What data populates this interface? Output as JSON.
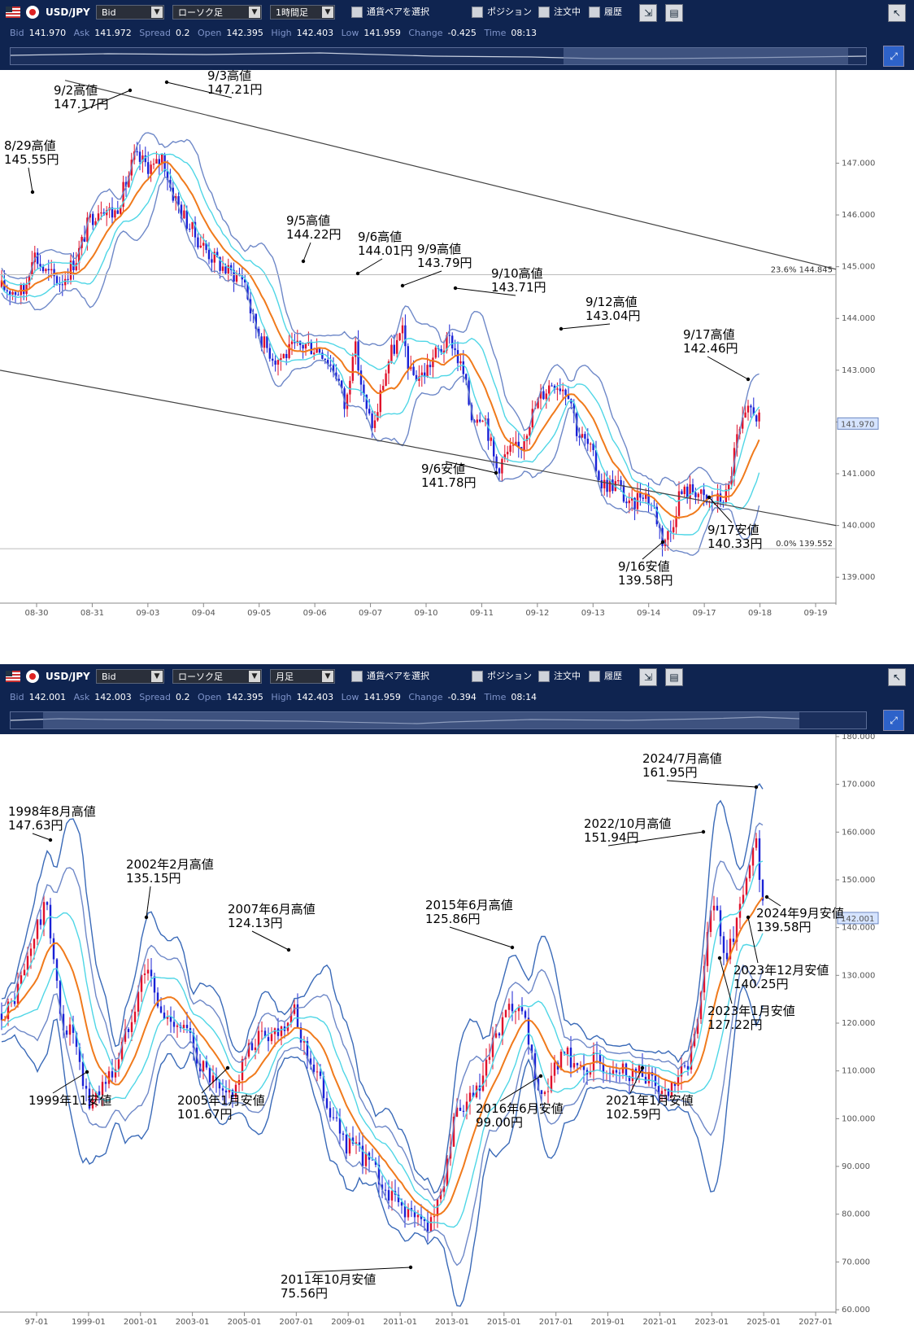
{
  "top": {
    "toolbar": {
      "pair": "USD/JPY",
      "price_type": "Bid",
      "chart_type": "ローソク足",
      "interval": "1時間足",
      "pair_select": "通貨ペアを選択",
      "position": "ポジション",
      "orders": "注文中",
      "history": "履歴"
    },
    "quote": {
      "bid_label": "Bid",
      "bid": "141.970",
      "ask_label": "Ask",
      "ask": "141.972",
      "spread_label": "Spread",
      "spread": "0.2",
      "open_label": "Open",
      "open": "142.395",
      "high_label": "High",
      "high": "142.403",
      "low_label": "Low",
      "low": "141.959",
      "change_label": "Change",
      "change": "-0.425",
      "time_label": "Time",
      "time": "08:13"
    },
    "price_tag": "141.970",
    "fib": [
      {
        "text": "23.6%  144.845",
        "value": 144.845
      },
      {
        "text": "0.0%  139.552",
        "value": 139.552
      }
    ]
  },
  "bottom": {
    "toolbar": {
      "pair": "USD/JPY",
      "price_type": "Bid",
      "chart_type": "ローソク足",
      "interval": "月足",
      "pair_select": "通貨ペアを選択",
      "position": "ポジション",
      "orders": "注文中",
      "history": "履歴"
    },
    "quote": {
      "bid_label": "Bid",
      "bid": "142.001",
      "ask_label": "Ask",
      "ask": "142.003",
      "spread_label": "Spread",
      "spread": "0.2",
      "open_label": "Open",
      "open": "142.395",
      "high_label": "High",
      "high": "142.403",
      "low_label": "Low",
      "low": "141.959",
      "change_label": "Change",
      "change": "-0.394",
      "time_label": "Time",
      "time": "08:14"
    },
    "price_tag": "142.001"
  },
  "chart_data": [
    {
      "type": "candlestick",
      "interval": "1時間足",
      "ylim": [
        138.5,
        148.8
      ],
      "yticks": [
        139,
        140,
        141,
        142,
        143,
        144,
        145,
        146,
        147
      ],
      "ytick_labels": [
        "139.000",
        "140.000",
        "141.000",
        "142.000",
        "143.000",
        "144.000",
        "145.000",
        "146.000",
        "147.000"
      ],
      "xticks": [
        "08-30",
        "08-31",
        "09-03",
        "09-04",
        "09-05",
        "09-06",
        "09-07",
        "09-10",
        "09-11",
        "09-12",
        "09-13",
        "09-14",
        "09-17",
        "09-18",
        "09-19"
      ],
      "last_price": 141.97,
      "annotations": [
        {
          "line1": "8/29高値",
          "line2": "145.55円",
          "value": 145.55,
          "kind": "high"
        },
        {
          "line1": "9/2高値",
          "line2": "147.17円",
          "value": 147.17,
          "kind": "high"
        },
        {
          "line1": "9/3高値",
          "line2": "147.21円",
          "value": 147.21,
          "kind": "high"
        },
        {
          "line1": "9/5高値",
          "line2": "144.22円",
          "value": 144.22,
          "kind": "high"
        },
        {
          "line1": "9/6高値",
          "line2": "144.01円",
          "value": 144.01,
          "kind": "high"
        },
        {
          "line1": "9/9高値",
          "line2": "143.79円",
          "value": 143.79,
          "kind": "high"
        },
        {
          "line1": "9/10高値",
          "line2": "143.71円",
          "value": 143.71,
          "kind": "high"
        },
        {
          "line1": "9/12高値",
          "line2": "143.04円",
          "value": 143.04,
          "kind": "high"
        },
        {
          "line1": "9/17高値",
          "line2": "142.46円",
          "value": 142.46,
          "kind": "high"
        },
        {
          "line1": "9/6安値",
          "line2": "141.78円",
          "value": 141.78,
          "kind": "low"
        },
        {
          "line1": "9/16安値",
          "line2": "139.58円",
          "value": 139.58,
          "kind": "low"
        },
        {
          "line1": "9/17安値",
          "line2": "140.33円",
          "value": 140.33,
          "kind": "low"
        }
      ],
      "price_path": [
        [
          0,
          144.6
        ],
        [
          30,
          144.5
        ],
        [
          40,
          145.3
        ],
        [
          55,
          144.9
        ],
        [
          75,
          144.7
        ],
        [
          95,
          145.2
        ],
        [
          110,
          145.9
        ],
        [
          125,
          146.2
        ],
        [
          140,
          146.0
        ],
        [
          155,
          146.6
        ],
        [
          165,
          147.1
        ],
        [
          190,
          146.9
        ],
        [
          200,
          147.15
        ],
        [
          210,
          146.5
        ],
        [
          225,
          146.0
        ],
        [
          240,
          145.6
        ],
        [
          260,
          145.2
        ],
        [
          280,
          144.9
        ],
        [
          300,
          144.8
        ],
        [
          310,
          144.0
        ],
        [
          325,
          143.5
        ],
        [
          340,
          143.2
        ],
        [
          360,
          143.4
        ],
        [
          375,
          143.5
        ],
        [
          395,
          143.4
        ],
        [
          415,
          142.9
        ],
        [
          425,
          142.2
        ],
        [
          435,
          143.6
        ],
        [
          450,
          142.2
        ],
        [
          460,
          141.9
        ],
        [
          470,
          142.7
        ],
        [
          480,
          143.3
        ],
        [
          495,
          143.7
        ],
        [
          505,
          142.9
        ],
        [
          520,
          142.9
        ],
        [
          535,
          143.3
        ],
        [
          555,
          143.6
        ],
        [
          570,
          142.9
        ],
        [
          580,
          142.1
        ],
        [
          595,
          142.2
        ],
        [
          610,
          141.1
        ],
        [
          625,
          141.4
        ],
        [
          640,
          141.5
        ],
        [
          650,
          142.0
        ],
        [
          665,
          142.5
        ],
        [
          680,
          142.8
        ],
        [
          700,
          142.6
        ],
        [
          710,
          141.8
        ],
        [
          725,
          141.5
        ],
        [
          740,
          140.8
        ],
        [
          760,
          140.8
        ],
        [
          775,
          140.3
        ],
        [
          790,
          140.7
        ],
        [
          805,
          140.3
        ],
        [
          815,
          139.7
        ],
        [
          825,
          139.9
        ],
        [
          835,
          140.6
        ],
        [
          855,
          140.7
        ],
        [
          870,
          140.4
        ],
        [
          885,
          140.5
        ],
        [
          895,
          140.6
        ],
        [
          905,
          141.6
        ],
        [
          915,
          142.0
        ],
        [
          925,
          142.3
        ],
        [
          935,
          141.97
        ]
      ]
    },
    {
      "type": "candlestick",
      "interval": "月足",
      "ylim": [
        59.5,
        180.5
      ],
      "yticks": [
        60,
        70,
        80,
        90,
        100,
        110,
        120,
        130,
        140,
        150,
        160,
        170,
        180
      ],
      "ytick_labels": [
        "60.000",
        "70.000",
        "80.000",
        "90.000",
        "100.000",
        "110.000",
        "120.000",
        "130.000",
        "140.000",
        "150.000",
        "160.000",
        "170.000",
        "180.000"
      ],
      "xticks": [
        "97-01",
        "1999-01",
        "2001-01",
        "2003-01",
        "2005-01",
        "2007-01",
        "2009-01",
        "2011-01",
        "2013-01",
        "2015-01",
        "2017-01",
        "2019-01",
        "2021-01",
        "2023-01",
        "2025-01",
        "2027-01"
      ],
      "last_price": 142.0,
      "annotations": [
        {
          "line1": "1998年8月高値",
          "line2": "147.63円",
          "value": 147.63,
          "kind": "high"
        },
        {
          "line1": "2002年2月高値",
          "line2": "135.15円",
          "value": 135.15,
          "kind": "high"
        },
        {
          "line1": "2007年6月高値",
          "line2": "124.13円",
          "value": 124.13,
          "kind": "high"
        },
        {
          "line1": "2015年6月高値",
          "line2": "125.86円",
          "value": 125.86,
          "kind": "high"
        },
        {
          "line1": "2022/10月高値",
          "line2": "151.94円",
          "value": 151.94,
          "kind": "high"
        },
        {
          "line1": "2024/7月高値",
          "line2": "161.95円",
          "value": 161.95,
          "kind": "high"
        },
        {
          "line1": "1999年11安値",
          "line2": "",
          "value": 101.5,
          "kind": "low"
        },
        {
          "line1": "2005年1月安値",
          "line2": "101.67円",
          "value": 101.67,
          "kind": "low"
        },
        {
          "line1": "2011年10月安値",
          "line2": "75.56円",
          "value": 75.56,
          "kind": "low"
        },
        {
          "line1": "2016年6月安値",
          "line2": "99.00円",
          "value": 99.0,
          "kind": "low"
        },
        {
          "line1": "2021年1月安値",
          "line2": "102.59円",
          "value": 102.59,
          "kind": "low"
        },
        {
          "line1": "2023年1月安値",
          "line2": "127.22円",
          "value": 127.22,
          "kind": "low"
        },
        {
          "line1": "2023年12月安値",
          "line2": "140.25円",
          "value": 140.25,
          "kind": "low"
        },
        {
          "line1": "2024年9月安値",
          "line2": "139.58円",
          "value": 139.58,
          "kind": "low"
        }
      ],
      "price_path": [
        [
          0,
          122
        ],
        [
          15,
          124
        ],
        [
          30,
          131
        ],
        [
          45,
          140
        ],
        [
          58,
          145
        ],
        [
          65,
          135
        ],
        [
          75,
          120
        ],
        [
          90,
          118
        ],
        [
          100,
          108
        ],
        [
          110,
          103
        ],
        [
          120,
          106
        ],
        [
          130,
          108
        ],
        [
          140,
          110
        ],
        [
          155,
          118
        ],
        [
          170,
          127
        ],
        [
          180,
          133
        ],
        [
          190,
          126
        ],
        [
          200,
          121
        ],
        [
          215,
          121
        ],
        [
          230,
          118
        ],
        [
          245,
          112
        ],
        [
          260,
          108
        ],
        [
          275,
          104
        ],
        [
          290,
          107
        ],
        [
          300,
          112
        ],
        [
          315,
          117
        ],
        [
          330,
          118
        ],
        [
          345,
          119
        ],
        [
          360,
          123
        ],
        [
          368,
          118
        ],
        [
          380,
          113
        ],
        [
          395,
          107
        ],
        [
          410,
          100
        ],
        [
          425,
          95
        ],
        [
          440,
          93
        ],
        [
          455,
          91
        ],
        [
          470,
          86
        ],
        [
          485,
          83
        ],
        [
          500,
          81
        ],
        [
          510,
          79
        ],
        [
          525,
          78
        ],
        [
          540,
          82
        ],
        [
          550,
          92
        ],
        [
          560,
          100
        ],
        [
          575,
          103
        ],
        [
          590,
          106
        ],
        [
          600,
          112
        ],
        [
          615,
          119
        ],
        [
          630,
          123
        ],
        [
          645,
          120
        ],
        [
          655,
          112
        ],
        [
          665,
          103
        ],
        [
          675,
          105
        ],
        [
          685,
          112
        ],
        [
          700,
          113
        ],
        [
          715,
          110
        ],
        [
          730,
          112
        ],
        [
          745,
          111
        ],
        [
          760,
          111
        ],
        [
          775,
          110
        ],
        [
          790,
          110
        ],
        [
          805,
          107
        ],
        [
          820,
          104
        ],
        [
          835,
          108
        ],
        [
          850,
          113
        ],
        [
          860,
          125
        ],
        [
          870,
          138
        ],
        [
          880,
          147
        ],
        [
          890,
          133
        ],
        [
          900,
          137
        ],
        [
          910,
          145
        ],
        [
          920,
          151
        ],
        [
          930,
          158
        ],
        [
          935,
          148
        ],
        [
          940,
          142
        ]
      ]
    }
  ]
}
